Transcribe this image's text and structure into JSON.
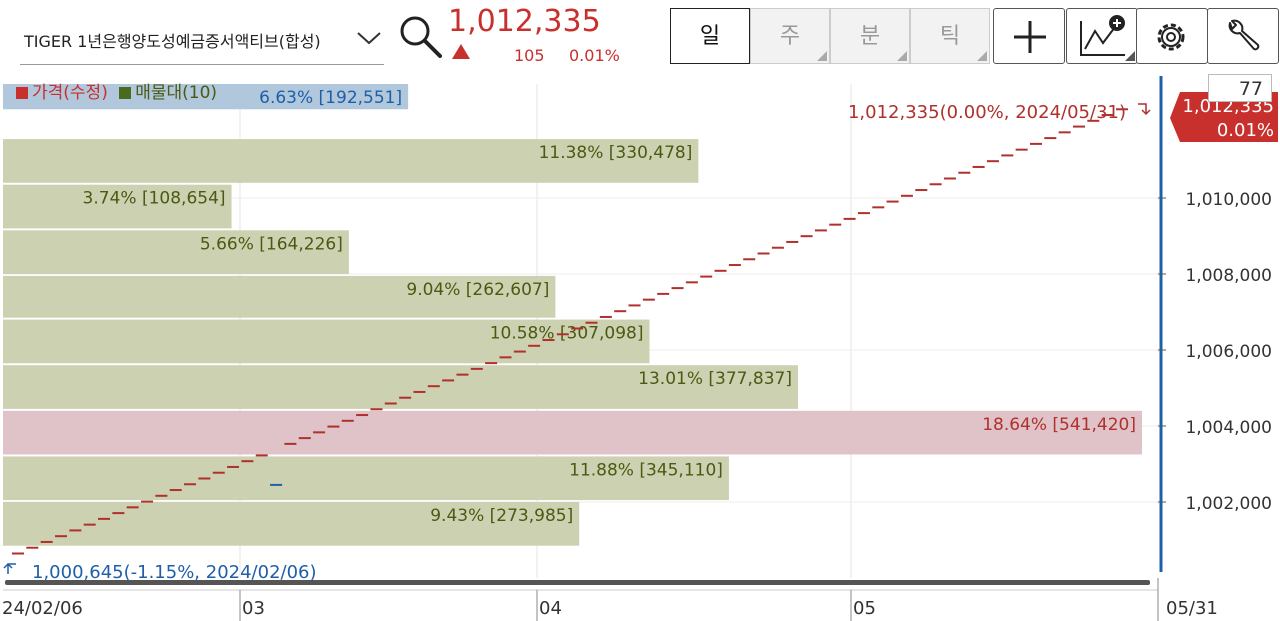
{
  "header": {
    "symbol": "TIGER 1년은행양도성예금증서액티브(합성)",
    "price": "1,012,335",
    "change": "105",
    "change_pct": "0.01%",
    "tabs": [
      {
        "label": "일",
        "active": true
      },
      {
        "label": "주",
        "active": false
      },
      {
        "label": "분",
        "active": false
      },
      {
        "label": "틱",
        "active": false
      }
    ],
    "tools": [
      "crosshair-icon",
      "add-indicator-icon",
      "settings-icon",
      "wrench-icon"
    ]
  },
  "legend": {
    "price_label": "가격(수정)",
    "volume_label": "매물대(10)",
    "price_color": "#c8302d",
    "volume_color": "#4a6a1e"
  },
  "badge": "77",
  "chart_data": {
    "type": "line",
    "x_ticks": [
      "24/02/06",
      "03",
      "04",
      "05",
      "05/31"
    ],
    "y_ticks": [
      "1,002,000",
      "1,004,000",
      "1,006,000",
      "1,008,000",
      "1,010,000"
    ],
    "y_tick_values": [
      1002000,
      1004000,
      1006000,
      1008000,
      1010000
    ],
    "ylim": [
      1000000,
      1013000
    ],
    "series": [
      {
        "start_value": 1000645,
        "end_value": 1012335,
        "start_date": "2024/02/06",
        "end_date": "2024/05/31",
        "sessions": 78,
        "dip_index": 18,
        "dip_value": 1002450
      }
    ],
    "volume_profile": [
      {
        "label": "6.63% [192,551]",
        "pct": 6.63,
        "vol": 192551,
        "low": 1012335,
        "high": 1013000,
        "kind": "current"
      },
      {
        "label": "11.38% [330,478]",
        "pct": 11.38,
        "vol": 330478,
        "low": 1010400,
        "high": 1011550,
        "kind": "normal"
      },
      {
        "label": "3.74% [108,654]",
        "pct": 3.74,
        "vol": 108654,
        "low": 1009200,
        "high": 1010350,
        "kind": "normal"
      },
      {
        "label": "5.66% [164,226]",
        "pct": 5.66,
        "vol": 164226,
        "low": 1008000,
        "high": 1009150,
        "kind": "normal"
      },
      {
        "label": "9.04% [262,607]",
        "pct": 9.04,
        "vol": 262607,
        "low": 1006850,
        "high": 1007950,
        "kind": "normal"
      },
      {
        "label": "10.58% [307,098]",
        "pct": 10.58,
        "vol": 307098,
        "low": 1005650,
        "high": 1006800,
        "kind": "normal"
      },
      {
        "label": "13.01% [377,837]",
        "pct": 13.01,
        "vol": 377837,
        "low": 1004450,
        "high": 1005600,
        "kind": "normal"
      },
      {
        "label": "18.64% [541,420]",
        "pct": 18.64,
        "vol": 541420,
        "low": 1003250,
        "high": 1004400,
        "kind": "max"
      },
      {
        "label": "11.88% [345,110]",
        "pct": 11.88,
        "vol": 345110,
        "low": 1002050,
        "high": 1003200,
        "kind": "normal"
      },
      {
        "label": "9.43% [273,985]",
        "pct": 9.43,
        "vol": 273985,
        "low": 1000850,
        "high": 1002000,
        "kind": "normal"
      }
    ],
    "annotations": {
      "high": "1,012,335(0.00%, 2024/05/31)",
      "low": "1,000,645(-1.15%, 2024/02/06)",
      "last_price": "1,012,335",
      "last_pct": "0.01%"
    },
    "colors": {
      "price": "#b0302c",
      "dip": "#1f5fa8",
      "profile": "#ccd1b1",
      "profile_current": "#b0c7dc",
      "profile_max": "#dfc3c8",
      "profile_text": "#4a5a12",
      "current_text": "#1f5fa8",
      "max_text": "#b0302c",
      "axis_blue": "#1f5fa8",
      "tag_red": "#c8302d"
    }
  }
}
